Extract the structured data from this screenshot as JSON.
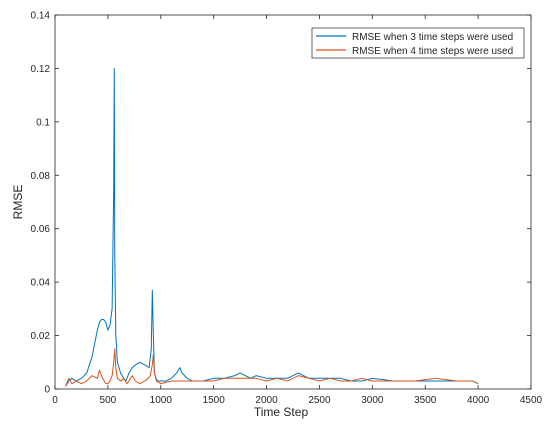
{
  "chart_data": {
    "type": "line",
    "title": "",
    "xlabel": "Time Step",
    "ylabel": "RMSE",
    "xlim": [
      0,
      4500
    ],
    "ylim": [
      0,
      0.14
    ],
    "xticks": [
      0,
      500,
      1000,
      1500,
      2000,
      2500,
      3000,
      3500,
      4000,
      4500
    ],
    "yticks": [
      0,
      0.02,
      0.04,
      0.06,
      0.08,
      0.1,
      0.12,
      0.14
    ],
    "xtick_labels": [
      "0",
      "500",
      "1000",
      "1500",
      "2000",
      "2500",
      "3000",
      "3500",
      "4000",
      "4500"
    ],
    "ytick_labels": [
      "0",
      "0.02",
      "0.04",
      "0.06",
      "0.08",
      "0.1",
      "0.12",
      "0.14"
    ],
    "grid": false,
    "legend_position": "top-right",
    "series": [
      {
        "name": "RMSE when 3 time steps were used",
        "color": "#0072BD",
        "x": [
          100,
          130,
          160,
          200,
          250,
          300,
          350,
          380,
          400,
          420,
          440,
          460,
          480,
          500,
          520,
          540,
          555,
          560,
          565,
          575,
          590,
          620,
          650,
          670,
          700,
          730,
          760,
          800,
          850,
          890,
          910,
          920,
          930,
          940,
          955,
          970,
          1000,
          1050,
          1100,
          1150,
          1180,
          1200,
          1250,
          1300,
          1400,
          1500,
          1600,
          1700,
          1750,
          1800,
          1850,
          1900,
          2000,
          2100,
          2200,
          2300,
          2350,
          2400,
          2500,
          2600,
          2700,
          2800,
          2900,
          3000,
          3200,
          3400,
          3600,
          3800,
          3950,
          4000
        ],
        "y": [
          0.001,
          0.003,
          0.004,
          0.003,
          0.004,
          0.006,
          0.012,
          0.018,
          0.022,
          0.025,
          0.026,
          0.026,
          0.025,
          0.022,
          0.024,
          0.03,
          0.075,
          0.12,
          0.05,
          0.02,
          0.01,
          0.006,
          0.004,
          0.003,
          0.006,
          0.008,
          0.009,
          0.01,
          0.009,
          0.008,
          0.015,
          0.037,
          0.02,
          0.006,
          0.004,
          0.003,
          0.003,
          0.003,
          0.004,
          0.006,
          0.008,
          0.006,
          0.004,
          0.003,
          0.003,
          0.004,
          0.004,
          0.005,
          0.006,
          0.005,
          0.004,
          0.005,
          0.004,
          0.004,
          0.004,
          0.006,
          0.005,
          0.004,
          0.004,
          0.004,
          0.004,
          0.003,
          0.003,
          0.004,
          0.003,
          0.003,
          0.003,
          0.003,
          0.003,
          0.002
        ]
      },
      {
        "name": "RMSE when 4 time steps were used",
        "color": "#D95319",
        "x": [
          100,
          130,
          160,
          200,
          250,
          300,
          350,
          400,
          420,
          450,
          480,
          500,
          520,
          540,
          555,
          565,
          575,
          590,
          620,
          650,
          680,
          700,
          730,
          760,
          800,
          850,
          880,
          900,
          920,
          930,
          940,
          960,
          1000,
          1100,
          1200,
          1300,
          1400,
          1500,
          1600,
          1700,
          1800,
          1900,
          2000,
          2100,
          2200,
          2300,
          2400,
          2500,
          2600,
          2700,
          2800,
          2900,
          3000,
          3200,
          3400,
          3600,
          3800,
          3950,
          4000
        ],
        "y": [
          0.001,
          0.004,
          0.002,
          0.003,
          0.002,
          0.003,
          0.005,
          0.004,
          0.007,
          0.004,
          0.002,
          0.002,
          0.003,
          0.005,
          0.01,
          0.015,
          0.008,
          0.004,
          0.003,
          0.004,
          0.002,
          0.003,
          0.005,
          0.003,
          0.002,
          0.003,
          0.004,
          0.005,
          0.009,
          0.013,
          0.006,
          0.003,
          0.002,
          0.003,
          0.003,
          0.003,
          0.003,
          0.003,
          0.004,
          0.004,
          0.004,
          0.004,
          0.003,
          0.004,
          0.003,
          0.005,
          0.004,
          0.003,
          0.004,
          0.003,
          0.003,
          0.004,
          0.003,
          0.003,
          0.003,
          0.004,
          0.003,
          0.003,
          0.002
        ]
      }
    ]
  }
}
